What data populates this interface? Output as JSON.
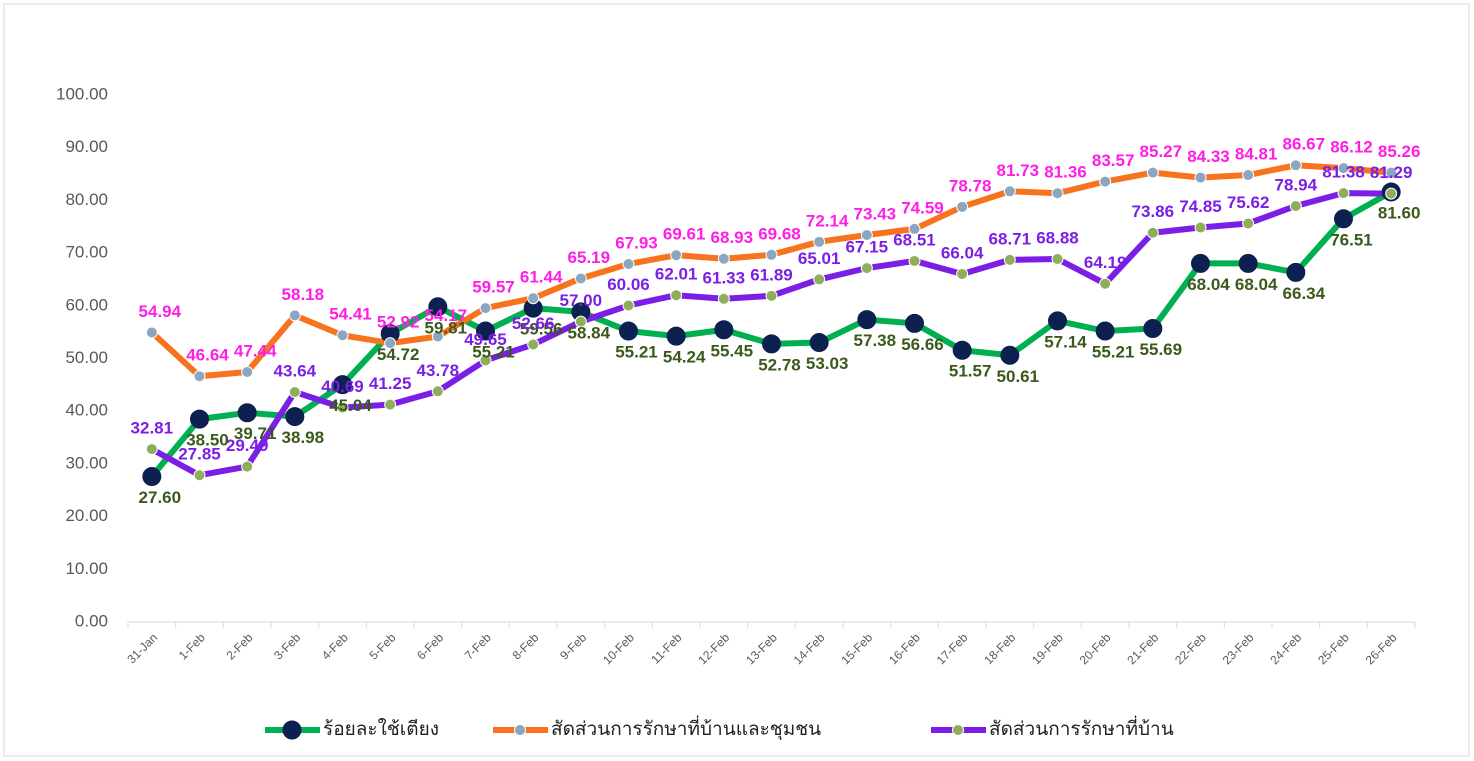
{
  "chart_data": {
    "type": "line",
    "categories": [
      "31-Jan",
      "1-Feb",
      "2-Feb",
      "3-Feb",
      "4-Feb",
      "5-Feb",
      "6-Feb",
      "7-Feb",
      "8-Feb",
      "9-Feb",
      "10-Feb",
      "11-Feb",
      "12-Feb",
      "13-Feb",
      "14-Feb",
      "15-Feb",
      "16-Feb",
      "17-Feb",
      "18-Feb",
      "19-Feb",
      "20-Feb",
      "21-Feb",
      "22-Feb",
      "23-Feb",
      "24-Feb",
      "25-Feb",
      "26-Feb"
    ],
    "ylim": [
      0,
      100
    ],
    "yticks": [
      {
        "value": 0,
        "label": "0.00"
      },
      {
        "value": 10,
        "label": "10.00"
      },
      {
        "value": 20,
        "label": "20.00"
      },
      {
        "value": 30,
        "label": "30.00"
      },
      {
        "value": 40,
        "label": "40.00"
      },
      {
        "value": 50,
        "label": "50.00"
      },
      {
        "value": 60,
        "label": "60.00"
      },
      {
        "value": 70,
        "label": "70.00"
      },
      {
        "value": 80,
        "label": "80.00"
      },
      {
        "value": 90,
        "label": "90.00"
      },
      {
        "value": 100,
        "label": "100.00"
      }
    ],
    "grid": false,
    "legend": "bottom",
    "series": [
      {
        "name": "ร้อยละใช้เตียง",
        "color": "#00b050",
        "marker_color": "#0c2150",
        "label_color": "#3a5a1c",
        "values": [
          27.6,
          38.5,
          39.71,
          38.98,
          45.04,
          54.72,
          59.81,
          55.21,
          59.56,
          58.84,
          55.21,
          54.24,
          55.45,
          52.78,
          53.03,
          57.38,
          56.66,
          51.57,
          50.61,
          57.14,
          55.21,
          55.69,
          68.04,
          68.04,
          66.34,
          76.51,
          81.6
        ],
        "value_labels": [
          "27.60",
          "38.50",
          "39.71",
          "38.98",
          "45.04",
          "54.72",
          "59.81",
          "55.21",
          "59.56",
          "58.84",
          "55.21",
          "54.24",
          "55.45",
          "52.78",
          "53.03",
          "57.38",
          "56.66",
          "51.57",
          "50.61",
          "57.14",
          "55.21",
          "55.69",
          "68.04",
          "68.04",
          "66.34",
          "76.51",
          "81.60"
        ]
      },
      {
        "name": "สัดส่วนการรักษาที่บ้านและชุมชน",
        "color": "#f7731e",
        "marker_color": "#8aa6c1",
        "label_color": "#ff1ee6",
        "values": [
          54.94,
          46.64,
          47.44,
          58.18,
          54.41,
          52.92,
          54.17,
          59.57,
          61.44,
          65.19,
          67.93,
          69.61,
          68.93,
          69.68,
          72.14,
          73.43,
          74.59,
          78.78,
          81.73,
          81.36,
          83.57,
          85.27,
          84.33,
          84.81,
          86.67,
          86.12,
          85.26
        ],
        "value_labels": [
          "54.94",
          "46.64",
          "47.44",
          "58.18",
          "54.41",
          "52.92",
          "54.17",
          "59.57",
          "61.44",
          "65.19",
          "67.93",
          "69.61",
          "68.93",
          "69.68",
          "72.14",
          "73.43",
          "74.59",
          "78.78",
          "81.73",
          "81.36",
          "83.57",
          "85.27",
          "84.33",
          "84.81",
          "86.67",
          "86.12",
          "85.26"
        ]
      },
      {
        "name": "สัดส่วนการรักษาที่บ้าน",
        "color": "#7b1fe6",
        "marker_color": "#8fae5a",
        "label_color": "#7b1fe6",
        "values": [
          32.81,
          27.85,
          29.49,
          43.64,
          40.69,
          41.25,
          43.78,
          49.65,
          52.66,
          57.0,
          60.06,
          62.01,
          61.33,
          61.89,
          65.01,
          67.15,
          68.51,
          66.04,
          68.71,
          68.88,
          64.19,
          73.86,
          74.85,
          75.62,
          78.94,
          81.38,
          81.29
        ],
        "value_labels": [
          "32.81",
          "27.85",
          "29.49",
          "43.64",
          "40.69",
          "41.25",
          "43.78",
          "49.65",
          "52.66",
          "57.00",
          "60.06",
          "62.01",
          "61.33",
          "61.89",
          "65.01",
          "67.15",
          "68.51",
          "66.04",
          "68.71",
          "68.88",
          "64.19",
          "73.86",
          "74.85",
          "75.62",
          "78.94",
          "81.38",
          "81.29"
        ]
      }
    ]
  }
}
